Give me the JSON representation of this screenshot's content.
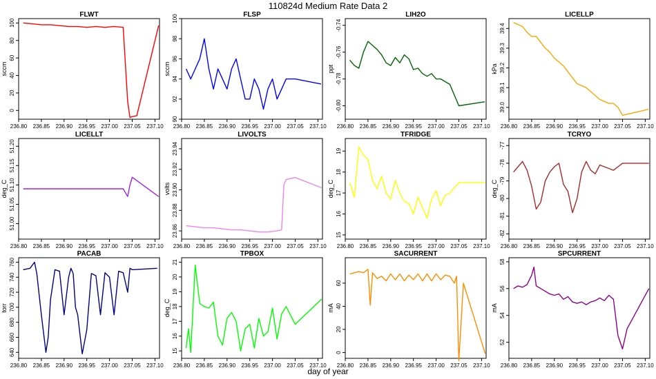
{
  "title": "110824d   Medium Rate Data 2",
  "xlabel": "day of year",
  "xticks": [
    "236.80",
    "236.85",
    "236.90",
    "236.95",
    "237.00",
    "237.05",
    "237.10"
  ],
  "chart_data": [
    {
      "type": "line",
      "title": "FLWT",
      "ylabel": "sccm",
      "color": "#ff0000",
      "xlim": [
        236.8,
        237.11
      ],
      "ylim": [
        -10,
        105
      ],
      "yticks": [
        "0",
        "20",
        "40",
        "60",
        "80",
        "100"
      ],
      "x": [
        236.81,
        236.83,
        236.85,
        236.87,
        236.89,
        236.91,
        236.93,
        236.95,
        236.97,
        236.99,
        237.01,
        237.03,
        237.04,
        237.045,
        237.05,
        237.06,
        237.108
      ],
      "y": [
        100,
        99,
        98,
        98,
        97,
        96,
        96,
        95,
        96,
        95,
        96,
        95,
        10,
        -8,
        -7,
        -6,
        97
      ]
    },
    {
      "type": "line",
      "title": "FLSP",
      "ylabel": "sccm",
      "color": "#0000ff",
      "xlim": [
        236.8,
        237.11
      ],
      "ylim": [
        90,
        100
      ],
      "yticks": [
        "90",
        "92",
        "94",
        "96",
        "98",
        "100"
      ],
      "x": [
        236.81,
        236.82,
        236.83,
        236.84,
        236.85,
        236.86,
        236.87,
        236.88,
        236.89,
        236.9,
        236.91,
        236.92,
        236.93,
        236.94,
        236.95,
        236.96,
        236.97,
        236.98,
        236.99,
        237.0,
        237.01,
        237.02,
        237.03,
        237.05,
        237.107
      ],
      "y": [
        95,
        94,
        95,
        96,
        98,
        95,
        93,
        95,
        94,
        93,
        95,
        96,
        94,
        92,
        92,
        94,
        93,
        91,
        93,
        94,
        92,
        93,
        94,
        94,
        93.5
      ]
    },
    {
      "type": "line",
      "title": "LIH2O",
      "ylabel": "ppt",
      "color": "#006400",
      "xlim": [
        236.8,
        237.11
      ],
      "ylim": [
        -0.81,
        -0.735
      ],
      "yticks": [
        "-0.80",
        "-0.78",
        "-0.76",
        "-0.74"
      ],
      "x": [
        236.81,
        236.82,
        236.83,
        236.84,
        236.85,
        236.86,
        236.87,
        236.88,
        236.89,
        236.9,
        236.91,
        236.92,
        236.93,
        236.94,
        236.95,
        236.96,
        236.97,
        236.98,
        236.99,
        237.0,
        237.01,
        237.02,
        237.03,
        237.05,
        237.107
      ],
      "y": [
        -0.766,
        -0.77,
        -0.772,
        -0.76,
        -0.752,
        -0.755,
        -0.758,
        -0.762,
        -0.768,
        -0.77,
        -0.764,
        -0.768,
        -0.762,
        -0.765,
        -0.773,
        -0.772,
        -0.776,
        -0.778,
        -0.776,
        -0.78,
        -0.78,
        -0.782,
        -0.784,
        -0.8,
        -0.797
      ]
    },
    {
      "type": "line",
      "title": "LICELLP",
      "ylabel": "kPa",
      "color": "#ffa500",
      "xlim": [
        236.8,
        237.11
      ],
      "ylim": [
        38.94,
        39.45
      ],
      "yticks": [
        "39.0",
        "39.1",
        "39.2",
        "39.3",
        "39.4"
      ],
      "x": [
        236.81,
        236.82,
        236.83,
        236.84,
        236.85,
        236.86,
        236.87,
        236.88,
        236.89,
        236.9,
        236.91,
        236.92,
        236.93,
        236.94,
        236.95,
        236.96,
        236.97,
        236.98,
        236.99,
        237.0,
        237.01,
        237.02,
        237.03,
        237.04,
        237.05,
        237.107
      ],
      "y": [
        39.43,
        39.42,
        39.41,
        39.38,
        39.36,
        39.36,
        39.33,
        39.3,
        39.28,
        39.25,
        39.23,
        39.21,
        39.18,
        39.15,
        39.12,
        39.11,
        39.1,
        39.08,
        39.06,
        39.04,
        39.03,
        39.02,
        39.02,
        39.0,
        38.96,
        38.99
      ]
    },
    {
      "type": "line",
      "title": "LICELLT",
      "ylabel": "deg_C",
      "color": "#a020f0",
      "xlim": [
        236.8,
        237.11
      ],
      "ylim": [
        50.96,
        51.22
      ],
      "yticks": [
        "51.00",
        "51.05",
        "51.10",
        "51.15",
        "51.20"
      ],
      "x": [
        236.81,
        236.83,
        236.85,
        236.87,
        236.89,
        236.91,
        236.93,
        236.95,
        236.97,
        236.99,
        237.01,
        237.03,
        237.04,
        237.045,
        237.05,
        237.108
      ],
      "y": [
        51.09,
        51.09,
        51.09,
        51.09,
        51.09,
        51.09,
        51.09,
        51.09,
        51.09,
        51.09,
        51.09,
        51.09,
        51.07,
        51.1,
        51.12,
        51.07
      ]
    },
    {
      "type": "line",
      "title": "LIVOLTS",
      "ylabel": "volts",
      "color": "#ee82ee",
      "xlim": [
        236.8,
        237.11
      ],
      "ylim": [
        23.852,
        23.95
      ],
      "yticks": [
        "23.86",
        "23.88",
        "23.90",
        "23.92",
        "23.94"
      ],
      "x": [
        236.81,
        236.83,
        236.85,
        236.87,
        236.89,
        236.91,
        236.93,
        236.95,
        236.97,
        236.99,
        237.01,
        237.02,
        237.025,
        237.03,
        237.05,
        237.108
      ],
      "y": [
        23.865,
        23.864,
        23.863,
        23.863,
        23.862,
        23.861,
        23.861,
        23.86,
        23.859,
        23.859,
        23.86,
        23.861,
        23.905,
        23.91,
        23.912,
        23.902
      ]
    },
    {
      "type": "line",
      "title": "TFRIDGE",
      "ylabel": "deg_C",
      "color": "#ffff00",
      "xlim": [
        236.8,
        237.11
      ],
      "ylim": [
        14.8,
        19.6
      ],
      "yticks": [
        "15",
        "16",
        "17",
        "18",
        "19"
      ],
      "x": [
        236.81,
        236.82,
        236.83,
        236.84,
        236.85,
        236.86,
        236.87,
        236.88,
        236.89,
        236.9,
        236.91,
        236.92,
        236.93,
        236.94,
        236.95,
        236.96,
        236.97,
        236.98,
        236.99,
        237.0,
        237.01,
        237.02,
        237.03,
        237.05,
        237.108
      ],
      "y": [
        17.5,
        16.8,
        19.2,
        18.8,
        18.6,
        17.6,
        17.2,
        17.8,
        17.0,
        16.7,
        17.6,
        17.0,
        16.6,
        16.5,
        16.0,
        16.8,
        16.3,
        15.8,
        16.7,
        17.1,
        16.4,
        16.9,
        17.0,
        17.5,
        17.5
      ]
    },
    {
      "type": "line",
      "title": "TCRYO",
      "ylabel": "deg_C",
      "color": "#a52a2a",
      "xlim": [
        236.8,
        237.11
      ],
      "ylim": [
        -82.3,
        -76.6
      ],
      "yticks": [
        "-82",
        "-81",
        "-80",
        "-79",
        "-78",
        "-77"
      ],
      "x": [
        236.81,
        236.82,
        236.83,
        236.84,
        236.85,
        236.86,
        236.87,
        236.88,
        236.89,
        236.9,
        236.91,
        236.92,
        236.93,
        236.94,
        236.95,
        236.96,
        236.97,
        236.98,
        236.99,
        237.0,
        237.01,
        237.02,
        237.03,
        237.05,
        237.108
      ],
      "y": [
        -78.5,
        -78.2,
        -77.9,
        -78.4,
        -79.3,
        -80.6,
        -80.2,
        -79.0,
        -78.5,
        -78.2,
        -78.0,
        -79.2,
        -79.6,
        -80.8,
        -80.0,
        -78.5,
        -77.9,
        -78.4,
        -78.6,
        -78.1,
        -78.2,
        -78.3,
        -78.4,
        -78.0,
        -78.0
      ]
    },
    {
      "type": "line",
      "title": "PACAB",
      "ylabel": "torr",
      "color": "#000080",
      "xlim": [
        236.8,
        237.11
      ],
      "ylim": [
        632,
        766
      ],
      "yticks": [
        "640",
        "660",
        "680",
        "700",
        "720",
        "740",
        "760"
      ],
      "x": [
        236.81,
        236.825,
        236.835,
        236.84,
        236.85,
        236.86,
        236.865,
        236.87,
        236.88,
        236.89,
        236.9,
        236.91,
        236.915,
        236.92,
        236.925,
        236.93,
        236.94,
        236.95,
        236.96,
        236.97,
        236.98,
        236.99,
        237.0,
        237.01,
        237.02,
        237.03,
        237.04,
        237.045,
        237.05,
        237.105
      ],
      "y": [
        750,
        752,
        760,
        745,
        690,
        640,
        660,
        710,
        750,
        748,
        690,
        740,
        752,
        745,
        700,
        690,
        638,
        670,
        745,
        742,
        690,
        746,
        740,
        690,
        748,
        746,
        720,
        752,
        750,
        752
      ]
    },
    {
      "type": "line",
      "title": "TPBOX",
      "ylabel": "deg_C",
      "color": "#00ff00",
      "xlim": [
        236.8,
        237.11
      ],
      "ylim": [
        14.5,
        21.3
      ],
      "yticks": [
        "15",
        "16",
        "17",
        "18",
        "19",
        "20",
        "21"
      ],
      "x": [
        236.81,
        236.815,
        236.82,
        236.83,
        236.84,
        236.85,
        236.86,
        236.87,
        236.88,
        236.89,
        236.9,
        236.91,
        236.92,
        236.93,
        236.94,
        236.95,
        236.96,
        236.97,
        236.98,
        236.99,
        237.0,
        237.01,
        237.02,
        237.03,
        237.05,
        237.108
      ],
      "y": [
        15.2,
        16.5,
        14.9,
        20.8,
        18.2,
        18.0,
        17.9,
        18.3,
        16.0,
        15.4,
        17.2,
        17.6,
        17.0,
        15.0,
        16.5,
        16.8,
        15.2,
        17.2,
        16.0,
        16.3,
        17.9,
        15.8,
        17.5,
        18.0,
        16.8,
        18.5
      ]
    },
    {
      "type": "line",
      "title": "SACURRENT",
      "ylabel": "mA",
      "color": "#ff8c00",
      "xlim": [
        236.8,
        237.11
      ],
      "ylim": [
        -5,
        82
      ],
      "yticks": [
        "0",
        "20",
        "40",
        "60"
      ],
      "x": [
        236.81,
        236.82,
        236.83,
        236.84,
        236.85,
        236.855,
        236.86,
        236.87,
        236.88,
        236.89,
        236.9,
        236.91,
        236.92,
        236.93,
        236.94,
        236.95,
        236.96,
        236.97,
        236.98,
        236.99,
        237.0,
        237.01,
        237.02,
        237.03,
        237.04,
        237.045,
        237.05,
        237.06,
        237.108
      ],
      "y": [
        68,
        69,
        70,
        69,
        72,
        41,
        69,
        64,
        66,
        62,
        68,
        63,
        68,
        62,
        67,
        63,
        68,
        62,
        68,
        62,
        68,
        63,
        67,
        66,
        60,
        66,
        -7,
        60,
        -1
      ]
    },
    {
      "type": "line",
      "title": "SPCURRENT",
      "ylabel": "mA",
      "color": "#8b008b",
      "xlim": [
        236.8,
        237.11
      ],
      "ylim": [
        50.8,
        58.3
      ],
      "yticks": [
        "52",
        "54",
        "56",
        "58"
      ],
      "x": [
        236.81,
        236.82,
        236.83,
        236.84,
        236.85,
        236.855,
        236.86,
        236.87,
        236.88,
        236.89,
        236.9,
        236.91,
        236.92,
        236.93,
        236.94,
        236.95,
        236.96,
        236.97,
        236.98,
        236.99,
        237.0,
        237.01,
        237.02,
        237.03,
        237.04,
        237.05,
        237.06,
        237.108
      ],
      "y": [
        56.0,
        56.2,
        56.1,
        56.3,
        57.0,
        57.6,
        56.2,
        56.0,
        55.8,
        55.6,
        55.5,
        55.6,
        55.2,
        55.4,
        55.0,
        54.9,
        55.0,
        54.8,
        55.0,
        55.1,
        55.3,
        55.1,
        55.5,
        55.2,
        52.5,
        51.5,
        53.0,
        56.0
      ]
    }
  ]
}
